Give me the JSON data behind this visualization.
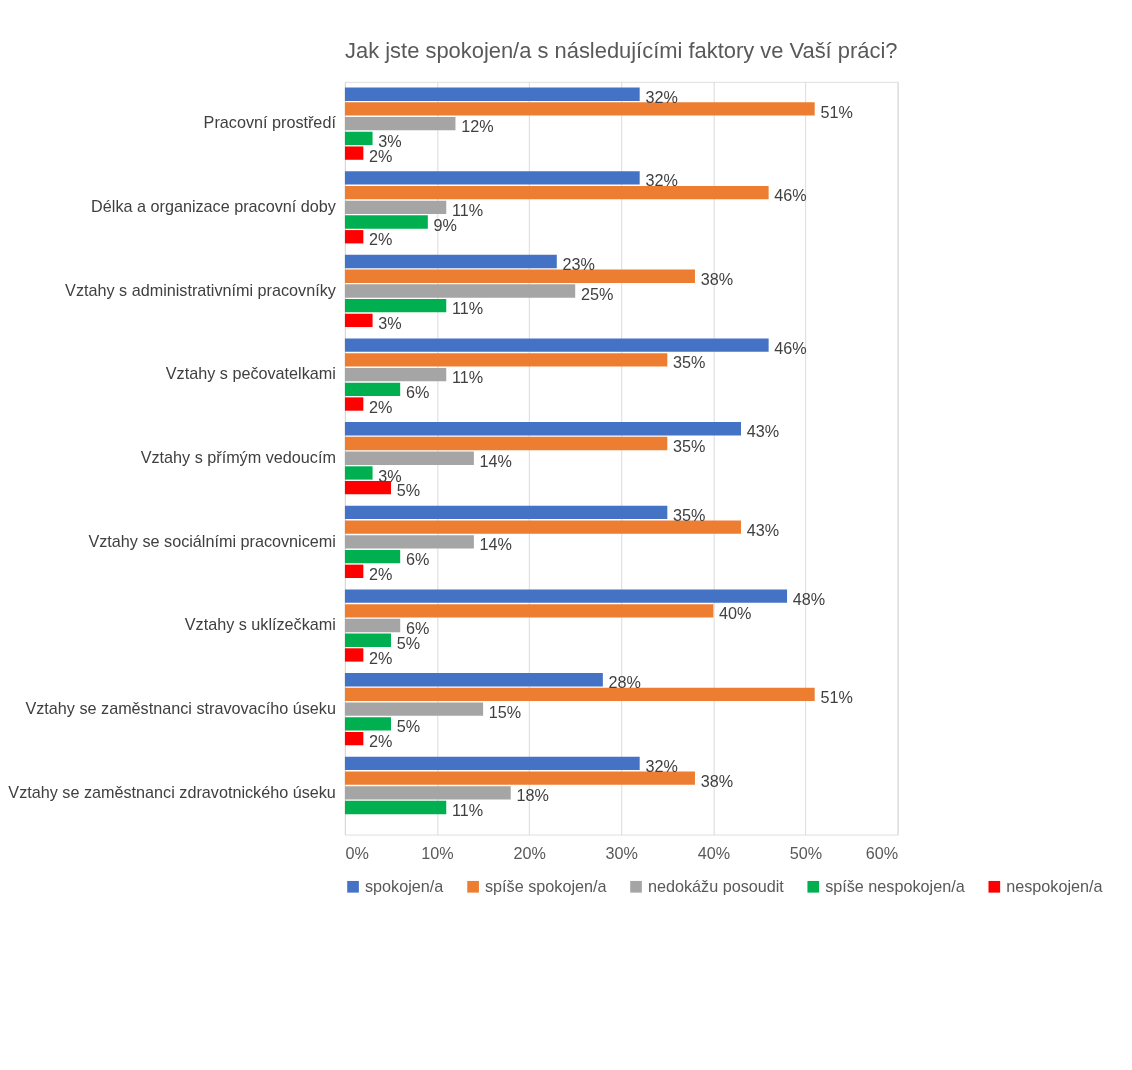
{
  "chart_data": {
    "type": "bar",
    "orientation": "horizontal",
    "title": "Jak jste spokojen/a s následujícími faktory ve Vaší práci?",
    "categories": [
      "Pracovní prostředí",
      "Délka a organizace pracovní doby",
      "Vztahy s administrativními pracovníky",
      "Vztahy s pečovatelkami",
      "Vztahy s přímým vedoucím",
      "Vztahy se sociálními pracovnicemi",
      "Vztahy s uklízečkami",
      "Vztahy se zaměstnanci stravovacího úseku",
      "Vztahy se zaměstnanci zdravotnického úseku"
    ],
    "series": [
      {
        "name": "spokojen/a",
        "color": "#4472c4",
        "values": [
          32,
          32,
          23,
          46,
          43,
          35,
          48,
          28,
          32
        ],
        "value_labels": [
          "32%",
          "32%",
          "23%",
          "46%",
          "43%",
          "35%",
          "48%",
          "28%",
          "32%"
        ]
      },
      {
        "name": "spíše spokojen/a",
        "color": "#ed7d31",
        "values": [
          51,
          46,
          38,
          35,
          35,
          43,
          40,
          51,
          38
        ],
        "value_labels": [
          "51%",
          "46%",
          "38%",
          "35%",
          "35%",
          "43%",
          "40%",
          "51%",
          "38%"
        ]
      },
      {
        "name": "nedokážu posoudit",
        "color": "#a5a5a5",
        "values": [
          12,
          11,
          25,
          11,
          14,
          14,
          6,
          15,
          18
        ],
        "value_labels": [
          "12%",
          "11%",
          "25%",
          "11%",
          "14%",
          "14%",
          "6%",
          "15%",
          "18%"
        ]
      },
      {
        "name": "spíše nespokojen/a",
        "color": "#00b050",
        "values": [
          3,
          9,
          11,
          6,
          3,
          6,
          5,
          5,
          11
        ],
        "value_labels": [
          "3%",
          "9%",
          "11%",
          "6%",
          "3%",
          "6%",
          "5%",
          "5%",
          "11%"
        ]
      },
      {
        "name": "nespokojen/a",
        "color": "#ff0000",
        "values": [
          2,
          2,
          3,
          2,
          5,
          2,
          2,
          2,
          null
        ],
        "value_labels": [
          "2%",
          "2%",
          "3%",
          "2%",
          "5%",
          "2%",
          "2%",
          "2%",
          null
        ]
      }
    ],
    "xlim": [
      0,
      60
    ],
    "xticks": [
      {
        "value": 0,
        "label": "0%"
      },
      {
        "value": 10,
        "label": "10%"
      },
      {
        "value": 20,
        "label": "20%"
      },
      {
        "value": 30,
        "label": "30%"
      },
      {
        "value": 40,
        "label": "40%"
      },
      {
        "value": 50,
        "label": "50%"
      },
      {
        "value": 60,
        "label": "60%"
      }
    ],
    "grid": "x",
    "legend": "bottom"
  }
}
